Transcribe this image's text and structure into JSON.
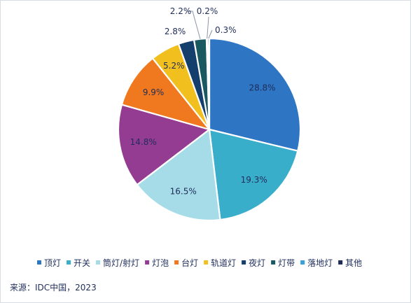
{
  "chart_data": {
    "type": "pie",
    "categories": [
      "顶灯",
      "开关",
      "筒灯/射灯",
      "灯泡",
      "台灯",
      "轨道灯",
      "夜灯",
      "灯带",
      "落地灯",
      "其他"
    ],
    "values": [
      28.8,
      19.3,
      16.5,
      14.8,
      9.9,
      5.2,
      2.8,
      2.2,
      0.2,
      0.3
    ],
    "labels": [
      "28.8%",
      "19.3%",
      "16.5%",
      "14.8%",
      "9.9%",
      "5.2%",
      "2.8%",
      "2.2%",
      "0.2%",
      "0.3%"
    ],
    "colors": [
      "#2E75C3",
      "#39AECB",
      "#A5DCE8",
      "#943C92",
      "#F0781E",
      "#F2C01E",
      "#143E6C",
      "#1B5961",
      "#3AA2D6",
      "#1E2B55"
    ],
    "legend_position": "bottom",
    "source": "来源：IDC中国，2023"
  }
}
